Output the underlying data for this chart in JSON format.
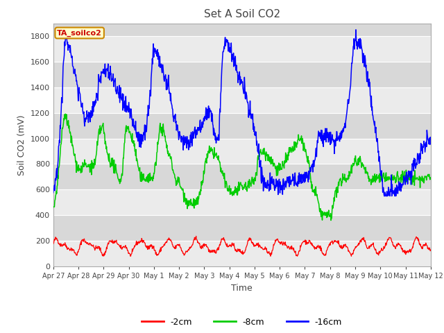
{
  "title": "Set A Soil CO2",
  "xlabel": "Time",
  "ylabel": "Soil CO2 (mV)",
  "ylim": [
    0,
    1900
  ],
  "yticks": [
    0,
    200,
    400,
    600,
    800,
    1000,
    1200,
    1400,
    1600,
    1800
  ],
  "date_labels": [
    "Apr 27",
    "Apr 28",
    "Apr 29",
    "Apr 30",
    "May 1",
    "May 2",
    "May 3",
    "May 4",
    "May 5",
    "May 6",
    "May 7",
    "May 8",
    "May 9",
    "May 10",
    "May 11",
    "May 12"
  ],
  "legend_labels": [
    "-2cm",
    "-8cm",
    "-16cm"
  ],
  "legend_colors": [
    "#ff0000",
    "#00cc00",
    "#0000ff"
  ],
  "line_colors": [
    "#ff0000",
    "#00cc00",
    "#0000ff"
  ],
  "annotation_text": "TA_soilco2",
  "annotation_bg": "#ffffcc",
  "annotation_border": "#cc8800",
  "annotation_text_color": "#cc0000",
  "background_color": "#ffffff",
  "plot_bg_color": "#d8d8d8",
  "hband_light": "#ebebeb",
  "hband_dark": "#d8d8d8",
  "grid_color": "#ffffff",
  "title_color": "#444444",
  "label_color": "#444444",
  "tick_color": "#444444"
}
